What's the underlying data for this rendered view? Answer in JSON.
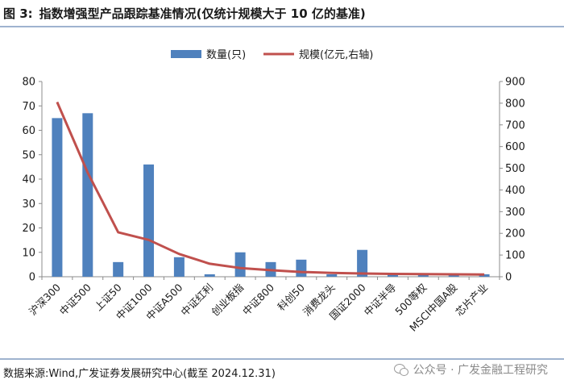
{
  "header": {
    "figure_label": "图 3:",
    "title": "指数增强型产品跟踪基准情况(仅统计规模大于 10 亿的基准)"
  },
  "footer": {
    "source": "数据来源:Wind,广发证券发展研究中心(截至 2024.12.31)",
    "watermark": "公众号 · 广发金融工程研究"
  },
  "chart_data": {
    "type": "bar",
    "categories": [
      "沪深300",
      "中证500",
      "上证50",
      "中证1000",
      "中证A500",
      "中证红利",
      "创业板指",
      "中证800",
      "科创50",
      "消费龙头",
      "国证2000",
      "中证半导",
      "500等权",
      "MSCI中国A股",
      "芯片产业"
    ],
    "series": [
      {
        "name": "数量(只)",
        "type": "bar",
        "axis": "left",
        "color": "#4f81bd",
        "values": [
          65,
          67,
          6,
          46,
          8,
          1,
          10,
          6,
          7,
          1,
          11,
          1,
          1,
          1,
          1
        ]
      },
      {
        "name": "规模(亿元,右轴)",
        "type": "line",
        "axis": "right",
        "color": "#c0504d",
        "values": [
          805,
          480,
          205,
          170,
          105,
          60,
          40,
          30,
          22,
          18,
          15,
          13,
          12,
          11,
          10
        ]
      }
    ],
    "y_left": {
      "min": 0,
      "max": 80,
      "ticks": [
        0,
        10,
        20,
        30,
        40,
        50,
        60,
        70,
        80
      ]
    },
    "y_right": {
      "min": 0,
      "max": 900,
      "ticks": [
        0,
        100,
        200,
        300,
        400,
        500,
        600,
        700,
        800,
        900
      ]
    },
    "legend_position": "top-center",
    "grid": false
  }
}
